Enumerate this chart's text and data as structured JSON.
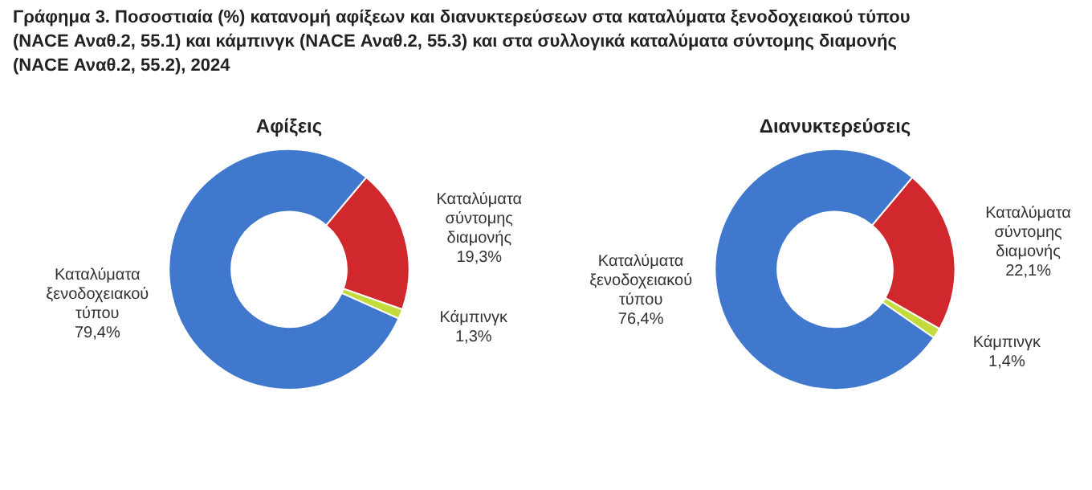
{
  "chart_data": [
    {
      "type": "donut",
      "title": "Αφίξεις",
      "annotations": [
        "Γράφημα 3. Ποσοστιαία (%) κατανομή αφίξεων και διανυκτερεύσεων στα καταλύματα ξενοδοχειακού τύπου (NACE Αναθ.2, 55.1) και κάμπινγκ (NACE Αναθ.2, 55.3) και στα συλλογικά καταλύματα σύντομης διαμονής (NACE Αναθ.2, 55.2), 2024"
      ],
      "categories": [
        "Καταλύματα σύντομης διαμονής",
        "Κάμπινγκ",
        "Καταλύματα ξενοδοχειακού τύπου"
      ],
      "values": [
        19.3,
        1.3,
        79.4
      ],
      "value_labels": [
        "19,3%",
        "1,3%",
        "79,4%"
      ],
      "colors": [
        "#d0282c",
        "#c3dc3c",
        "#3f78cc"
      ],
      "legend": false
    },
    {
      "type": "donut",
      "title": "Διανυκτερεύσεις",
      "categories": [
        "Καταλύματα σύντομης διαμονής",
        "Κάμπινγκ",
        "Καταλύματα ξενοδοχειακού τύπου"
      ],
      "values": [
        22.1,
        1.4,
        76.4
      ],
      "value_labels": [
        "22,1%",
        "1,4%",
        "76,4%"
      ],
      "colors": [
        "#d0282c",
        "#c3dc3c",
        "#3f78cc"
      ],
      "legend": false
    }
  ]
}
